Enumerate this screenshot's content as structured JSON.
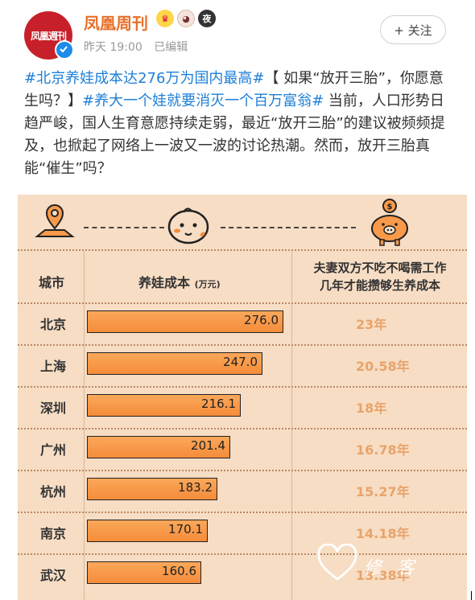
{
  "post": {
    "author": "凤凰周刊",
    "avatar_text": "凤凰週刊",
    "badges": {
      "crown": "♛",
      "face": "◕",
      "night": "夜"
    },
    "time": "昨天 19:00",
    "edited": "已编辑",
    "follow_label": "+ 关注",
    "text_segments": [
      {
        "text": "#北京养娃成本达276万为国内最高#",
        "tag": true
      },
      {
        "text": "【 如果“放开三胎”，你愿意生吗？】",
        "tag": false
      },
      {
        "text": "#养大一个娃就要消灭一个百万富翁#",
        "tag": true
      },
      {
        "text": " 当前，人口形势日趋严峻，国人生育意愿持续走弱，最近“放开三胎”的建议被频频提及，也掀起了网络上一波又一波的讨论热潮。然而，放开三胎真能“催生”吗？",
        "tag": false
      }
    ]
  },
  "infographic": {
    "header_city": "城市",
    "header_cost": "养娃成本",
    "header_cost_unit": "(万元)",
    "header_years_line1": "夫妻双方不吃不喝需工作",
    "header_years_line2": "几年才能攒够生养成本",
    "icons": [
      "location-map-icon",
      "baby-face-icon",
      "piggy-bank-icon"
    ]
  },
  "chart_data": {
    "type": "bar",
    "orientation": "horizontal",
    "categories": [
      "北京",
      "上海",
      "深圳",
      "广州",
      "杭州",
      "南京",
      "武汉"
    ],
    "values": [
      276.0,
      247.0,
      216.1,
      201.4,
      183.2,
      170.1,
      160.6
    ],
    "value_labels": [
      "276.0",
      "247.0",
      "216.1",
      "201.4",
      "183.2",
      "170.1",
      "160.6"
    ],
    "years": [
      "23年",
      "20.58年",
      "18年",
      "16.78年",
      "15.27年",
      "14.18年",
      "13.38年"
    ],
    "xlim": [
      0,
      276.0
    ],
    "bar_color": "#f89a4a"
  },
  "watermark": {
    "text": "修 客"
  }
}
